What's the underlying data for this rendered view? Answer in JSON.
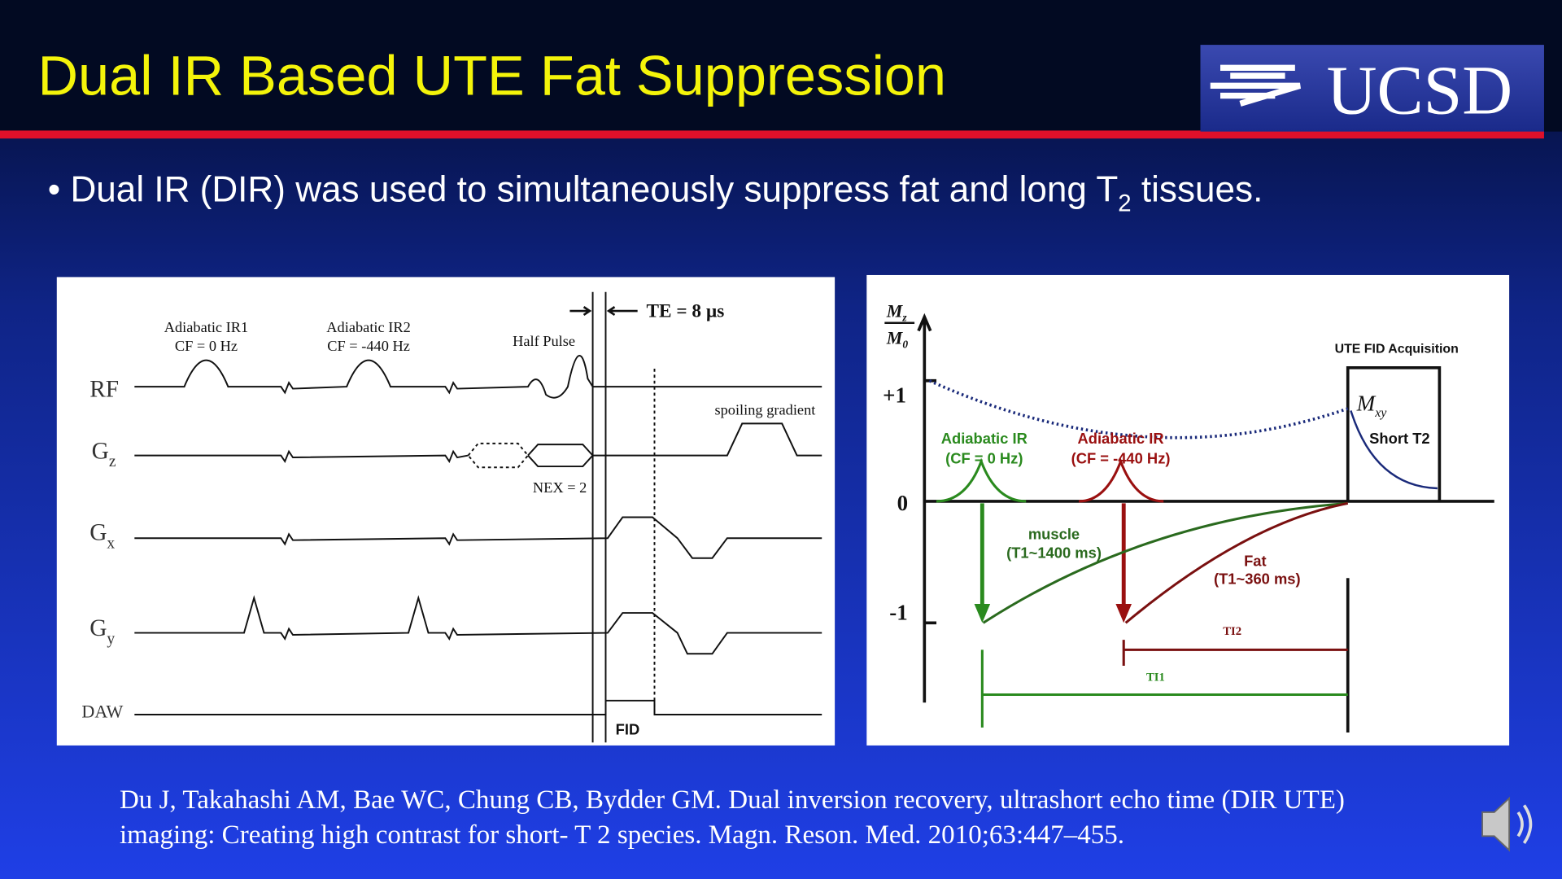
{
  "header": {
    "title": "Dual IR Based UTE Fat Suppression",
    "logo": "UCSD"
  },
  "bullet": {
    "before": "Dual IR (DIR) was used to simultaneously suppress fat and long T",
    "sub": "2",
    "after": " tissues."
  },
  "left_diagram": {
    "ir1": [
      "Adiabatic IR1",
      "CF = 0 Hz"
    ],
    "ir2": [
      "Adiabatic IR2",
      "CF = -440 Hz"
    ],
    "half_pulse": "Half Pulse",
    "te": "TE = 8 µs",
    "spoiling": "spoiling gradient",
    "nex": "NEX = 2",
    "fid": "FID",
    "rows": [
      {
        "base": "RF",
        "sub": ""
      },
      {
        "base": "G",
        "sub": "z"
      },
      {
        "base": "G",
        "sub": "x"
      },
      {
        "base": "G",
        "sub": "y"
      },
      {
        "base": "DAW",
        "sub": ""
      }
    ]
  },
  "right_diagram": {
    "axis_top": {
      "base": "M",
      "sub": "z"
    },
    "axis_bottom": {
      "base": "M",
      "sub": "0"
    },
    "plus_one": "+1",
    "zero": "0",
    "minus_one": "-1",
    "acquisition": "UTE FID Acquisition",
    "mxy": {
      "base": "M",
      "sub": "xy"
    },
    "short_t2": "Short T2",
    "ir_a": [
      "Adiabatic IR",
      "(CF = 0 Hz)"
    ],
    "ir_b": [
      "Adiabatic IR",
      "(CF = -440 Hz)"
    ],
    "muscle": [
      "muscle",
      "(T1~1400 ms)"
    ],
    "fat": [
      "Fat",
      "(T1~360 ms)"
    ],
    "ti2": "TI2",
    "ti1": "TI1"
  },
  "citation": [
    "Du J, Takahashi AM, Bae WC, Chung CB, Bydder GM. Dual inversion recovery, ultrashort echo time (DIR UTE)",
    "imaging: Creating high contrast for short- T 2 species. Magn. Reson. Med. 2010;63:447–455."
  ]
}
